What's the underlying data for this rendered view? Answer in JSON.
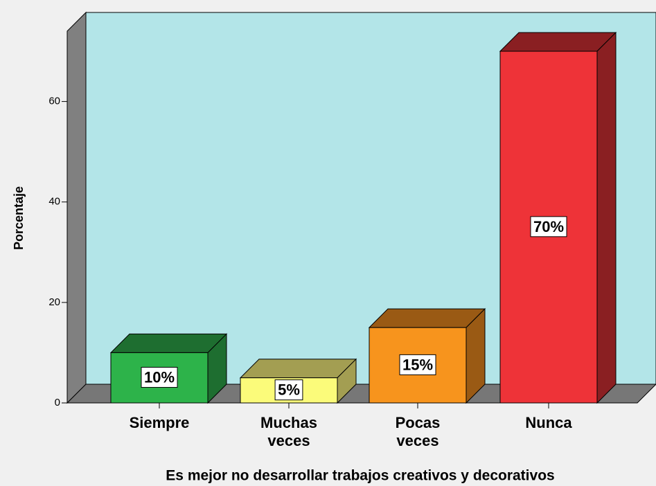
{
  "chart_data": {
    "type": "bar3d",
    "x_label": "Es mejor no desarrollar trabajos creativos y decorativos",
    "y_label": "Porcentaje",
    "categories": [
      "Siempre",
      "Muchas veces",
      "Pocas veces",
      "Nunca"
    ],
    "values": [
      10,
      5,
      15,
      70
    ],
    "value_labels": [
      "10%",
      "5%",
      "15%",
      "70%"
    ],
    "colors": [
      "#2db34a",
      "#fbfb7a",
      "#f7941d",
      "#ee3338"
    ],
    "side_colors": [
      "#1e6e30",
      "#a39e52",
      "#9a5a14",
      "#8a1f22"
    ],
    "ylim": [
      0,
      74
    ],
    "yticks": [
      0,
      20,
      40,
      60
    ]
  }
}
